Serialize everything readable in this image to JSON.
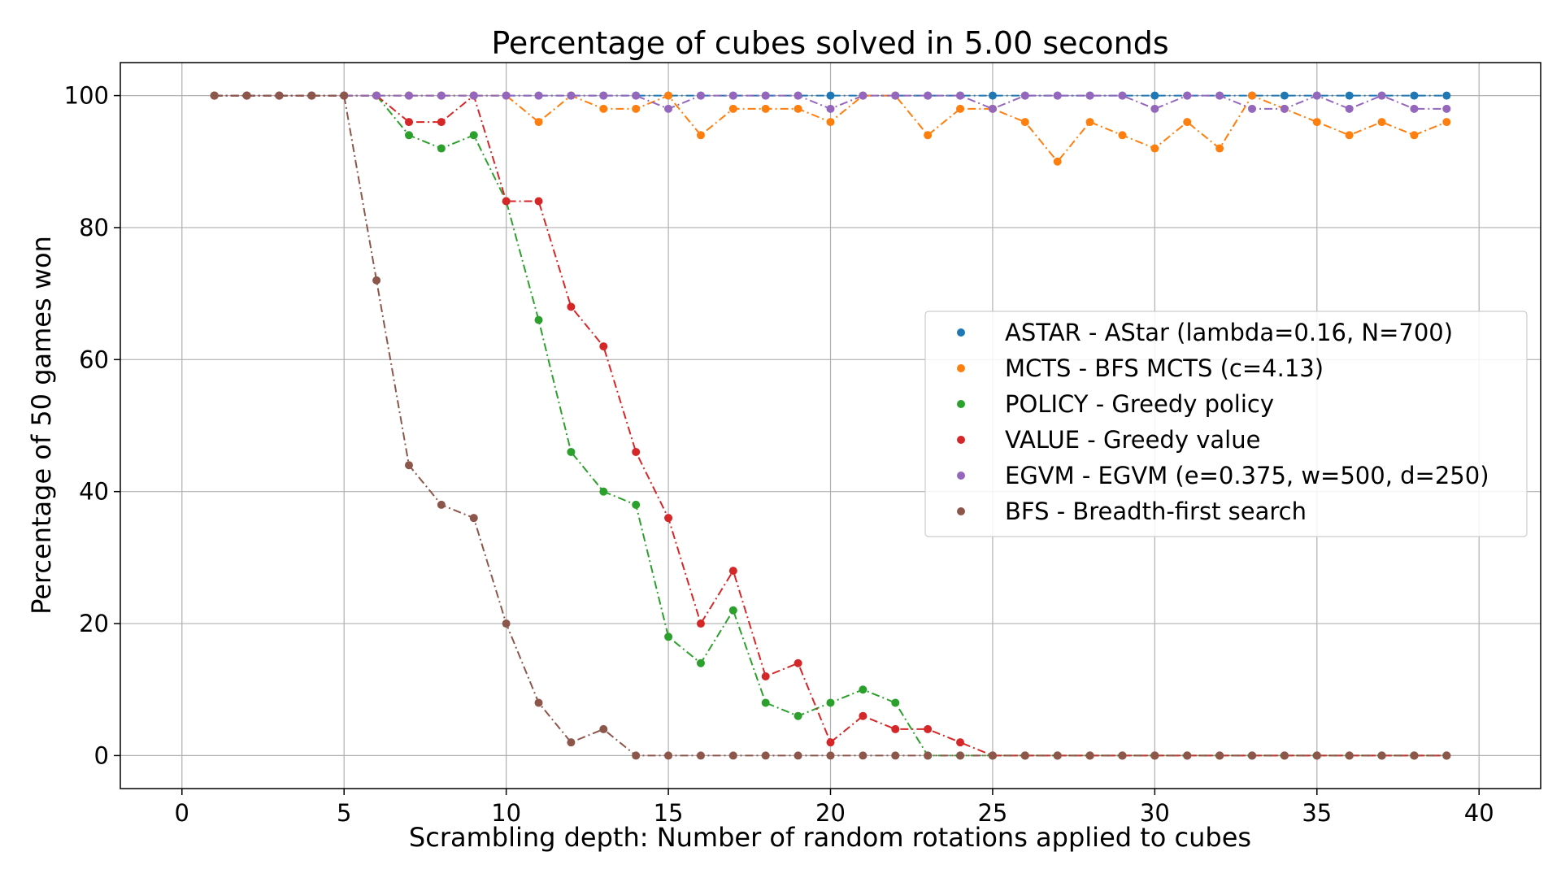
{
  "chart_data": {
    "type": "line",
    "title": "Percentage of cubes solved in 5.00 seconds",
    "xlabel": "Scrambling depth: Number of random rotations applied to cubes",
    "ylabel": "Percentage of 50 games won",
    "xlim": [
      -1.9,
      41.9
    ],
    "ylim": [
      -5,
      105
    ],
    "xticks": [
      0,
      5,
      10,
      15,
      20,
      25,
      30,
      35,
      40
    ],
    "yticks": [
      0,
      20,
      40,
      60,
      80,
      100
    ],
    "grid": true,
    "legend_position": "center-right",
    "x": [
      1,
      2,
      3,
      4,
      5,
      6,
      7,
      8,
      9,
      10,
      11,
      12,
      13,
      14,
      15,
      16,
      17,
      18,
      19,
      20,
      21,
      22,
      23,
      24,
      25,
      26,
      27,
      28,
      29,
      30,
      31,
      32,
      33,
      34,
      35,
      36,
      37,
      38,
      39
    ],
    "series": [
      {
        "name": "ASTAR - AStar (lambda=0.16, N=700)",
        "color": "#1f77b4",
        "values": [
          100,
          100,
          100,
          100,
          100,
          100,
          100,
          100,
          100,
          100,
          100,
          100,
          100,
          100,
          100,
          100,
          100,
          100,
          100,
          100,
          100,
          100,
          100,
          100,
          100,
          100,
          100,
          100,
          100,
          100,
          100,
          100,
          100,
          100,
          100,
          100,
          100,
          100,
          100
        ]
      },
      {
        "name": "MCTS - BFS MCTS (c=4.13)",
        "color": "#ff7f0e",
        "values": [
          100,
          100,
          100,
          100,
          100,
          100,
          100,
          100,
          100,
          100,
          96,
          100,
          98,
          98,
          100,
          94,
          98,
          98,
          98,
          96,
          100,
          100,
          94,
          98,
          98,
          96,
          90,
          96,
          94,
          92,
          96,
          92,
          100,
          98,
          96,
          94,
          96,
          94,
          96
        ]
      },
      {
        "name": "POLICY - Greedy policy",
        "color": "#2ca02c",
        "values": [
          100,
          100,
          100,
          100,
          100,
          100,
          94,
          92,
          94,
          84,
          66,
          46,
          40,
          38,
          18,
          14,
          22,
          8,
          6,
          8,
          10,
          8,
          0,
          0,
          0,
          0,
          0,
          0,
          0,
          0,
          0,
          0,
          0,
          0,
          0,
          0,
          0,
          0,
          0
        ]
      },
      {
        "name": "VALUE - Greedy value",
        "color": "#d62728",
        "values": [
          100,
          100,
          100,
          100,
          100,
          100,
          96,
          96,
          100,
          84,
          84,
          68,
          62,
          46,
          36,
          20,
          28,
          12,
          14,
          2,
          6,
          4,
          4,
          2,
          0,
          0,
          0,
          0,
          0,
          0,
          0,
          0,
          0,
          0,
          0,
          0,
          0,
          0,
          0
        ]
      },
      {
        "name": "EGVM - EGVM (e=0.375, w=500, d=250)",
        "color": "#9467bd",
        "values": [
          100,
          100,
          100,
          100,
          100,
          100,
          100,
          100,
          100,
          100,
          100,
          100,
          100,
          100,
          98,
          100,
          100,
          100,
          100,
          98,
          100,
          100,
          100,
          100,
          98,
          100,
          100,
          100,
          100,
          98,
          100,
          100,
          98,
          98,
          100,
          98,
          100,
          98,
          98
        ]
      },
      {
        "name": "BFS - Breadth-first search",
        "color": "#8c564b",
        "values": [
          100,
          100,
          100,
          100,
          100,
          72,
          44,
          38,
          36,
          20,
          8,
          2,
          4,
          0,
          0,
          0,
          0,
          0,
          0,
          0,
          0,
          0,
          0,
          0,
          0,
          0,
          0,
          0,
          0,
          0,
          0,
          0,
          0,
          0,
          0,
          0,
          0,
          0,
          0
        ]
      }
    ]
  }
}
